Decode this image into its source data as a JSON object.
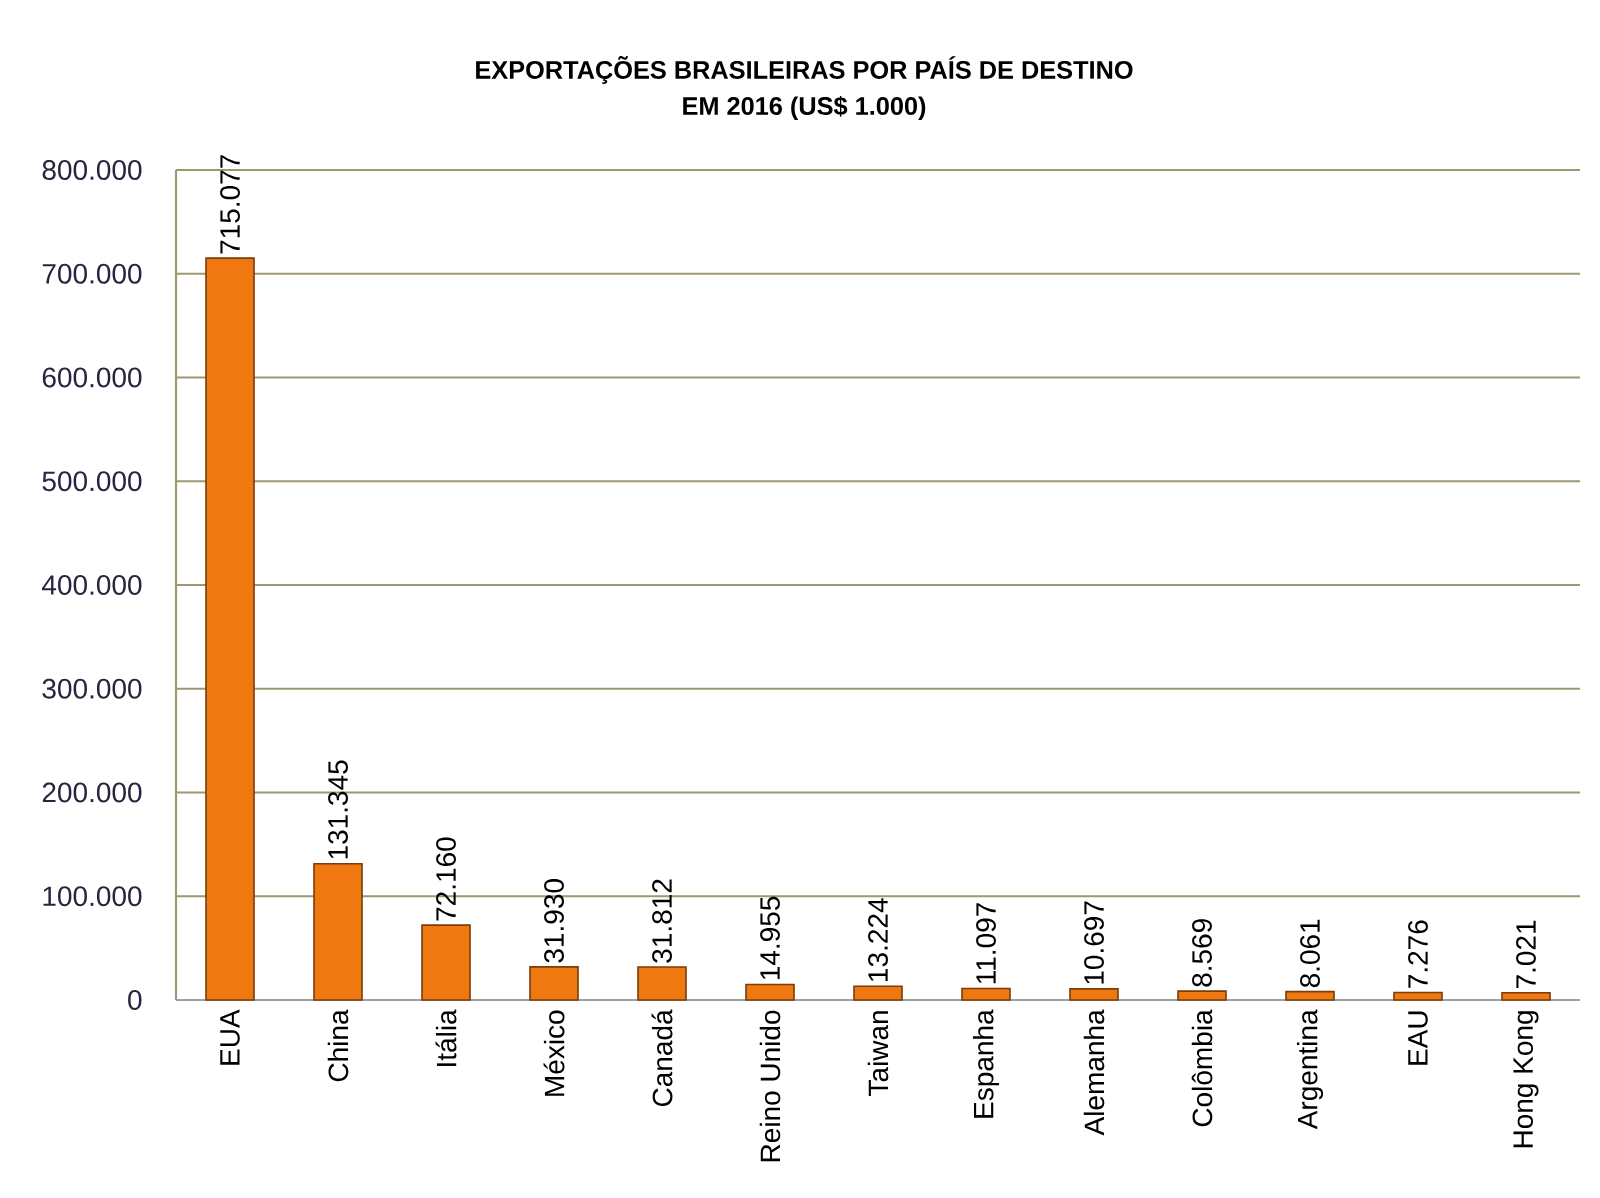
{
  "chart_data": {
    "type": "bar",
    "title": "EXPORTAÇÕES BRASILEIRAS POR PAÍS DE DESTINO",
    "subtitle": "EM 2016 (US$ 1.000)",
    "categories": [
      "EUA",
      "China",
      "Itália",
      "México",
      "Canadá",
      "Reino Unido",
      "Taiwan",
      "Espanha",
      "Alemanha",
      "Colômbia",
      "Argentina",
      "EAU",
      "Hong Kong"
    ],
    "values": [
      715077,
      131345,
      72160,
      31930,
      31812,
      14955,
      13224,
      11097,
      10697,
      8569,
      8061,
      7276,
      7021
    ],
    "value_labels": [
      "715.077",
      "131.345",
      "72.160",
      "31.930",
      "31.812",
      "14.955",
      "13.224",
      "11.097",
      "10.697",
      "8.569",
      "8.061",
      "7.276",
      "7.021"
    ],
    "color": "#f07810",
    "ylim": [
      0,
      800000
    ],
    "yticks": [
      0,
      {
        "value": 100000,
        "label": "100.000"
      },
      {
        "value": 200000,
        "label": "200.000"
      },
      {
        "value": 300000,
        "label": "300.000"
      },
      {
        "value": 400000,
        "label": "400.000"
      },
      {
        "value": 500000,
        "label": "500.000"
      },
      {
        "value": 600000,
        "label": "600.000"
      },
      {
        "value": 700000,
        "label": "700.000"
      },
      {
        "value": 800000,
        "label": "800.000"
      }
    ],
    "grid": "y"
  }
}
